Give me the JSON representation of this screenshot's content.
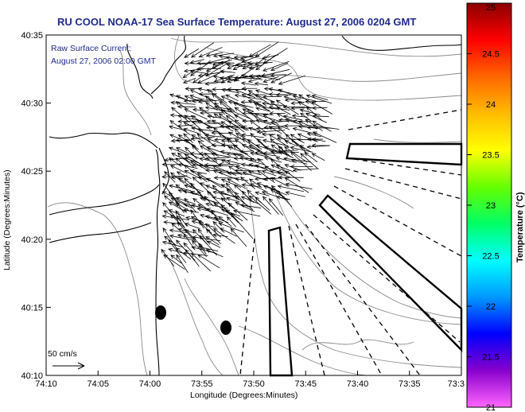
{
  "title": "RU COOL  NOAA-17  Sea Surface Temperature:  August 27, 2006 0204 GMT",
  "subtitle": {
    "line1": "Raw Surface Current:",
    "line2": "August 27, 2006 02:00 GMT"
  },
  "x_axis": {
    "label": "Longitude (Degrees:Minutes)",
    "ticks": [
      "74:10",
      "74:05",
      "74:00",
      "73:55",
      "73:50",
      "73:45",
      "73:40",
      "73:35",
      "73:3"
    ]
  },
  "y_axis": {
    "label": "Latitude (Degrees:Minutes)",
    "ticks": [
      "40:35",
      "40:30",
      "40:25",
      "40:20",
      "40:15",
      "40:10"
    ]
  },
  "colorbar": {
    "label": "Temperature (°C)",
    "ticks": [
      "25",
      "24.5",
      "24",
      "23.5",
      "23",
      "22.5",
      "22",
      "21.5",
      "21"
    ],
    "range": [
      21,
      25
    ],
    "colors": [
      "#ff66ff",
      "#8800cc",
      "#0000ff",
      "#0099ff",
      "#00ffff",
      "#00ff66",
      "#66ff00",
      "#ffff00",
      "#ffbb00",
      "#ff6600",
      "#ff0000",
      "#8b0000"
    ]
  },
  "scale_bar": {
    "label": "50 cm/s"
  },
  "colors": {
    "title": "#1f2a8c",
    "coast": "#000000",
    "bathymetry": "#888888",
    "frame": "#000000"
  }
}
